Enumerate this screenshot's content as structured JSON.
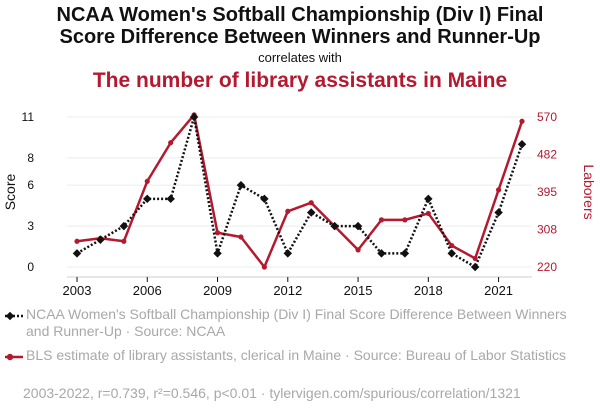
{
  "title_line1": "NCAA Women's Softball Championship (Div I) Final",
  "title_line2": "Score Difference Between Winners and Runner-Up",
  "subtitle": "correlates with",
  "title_second": "The number of library assistants in Maine",
  "colors": {
    "series1": "#111111",
    "series2": "#b5192f",
    "text_muted": "#a8a8a8"
  },
  "chart_data": {
    "type": "line",
    "x": [
      2003,
      2004,
      2005,
      2006,
      2007,
      2008,
      2009,
      2010,
      2011,
      2012,
      2013,
      2014,
      2015,
      2016,
      2017,
      2018,
      2019,
      2020,
      2021,
      2022
    ],
    "x_ticks": [
      "2003",
      "2006",
      "2009",
      "2012",
      "2015",
      "2018",
      "2021"
    ],
    "y_left": {
      "label": "Score",
      "ticks": [
        "0",
        "3",
        "6",
        "8",
        "11"
      ],
      "range": [
        0,
        11
      ]
    },
    "y_right": {
      "label": "Laborers",
      "ticks": [
        "220",
        "308",
        "395",
        "482",
        "570"
      ],
      "range": [
        220,
        570
      ]
    },
    "series": [
      {
        "name": "NCAA Women's Softball Championship (Div I) Final Score Difference Between Winners and Runner-Up · Source: NCAA",
        "axis": "left",
        "style": "dotted",
        "values": [
          1,
          2,
          3,
          5,
          5,
          11,
          1,
          6,
          5,
          1,
          4,
          3,
          3,
          1,
          1,
          5,
          1,
          0,
          4,
          9
        ]
      },
      {
        "name": "BLS estimate of library assistants, clerical in Maine · Source: Bureau of Labor Statistics",
        "axis": "right",
        "style": "solid",
        "values": [
          280,
          287,
          280,
          420,
          510,
          575,
          300,
          290,
          220,
          350,
          370,
          315,
          260,
          330,
          330,
          345,
          270,
          240,
          400,
          560
        ]
      }
    ]
  },
  "footer": "2003-2022, r=0.739, r²=0.546, p<0.01 · tylervigen.com/spurious/correlation/1321"
}
